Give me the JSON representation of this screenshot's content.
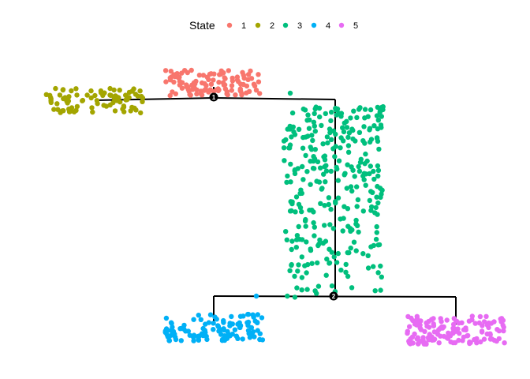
{
  "chart_data": {
    "type": "scatter",
    "title": "",
    "xlabel": "",
    "ylabel": "",
    "grid": false,
    "legend": {
      "title": "State",
      "placement": "top"
    },
    "states": [
      {
        "name": "1",
        "color": "#F8766D"
      },
      {
        "name": "2",
        "color": "#A3A500"
      },
      {
        "name": "3",
        "color": "#00BF7D"
      },
      {
        "name": "4",
        "color": "#00B0F6"
      },
      {
        "name": "5",
        "color": "#E76BF3"
      }
    ],
    "branch_points": [
      {
        "label": "1"
      },
      {
        "label": "2"
      }
    ]
  }
}
